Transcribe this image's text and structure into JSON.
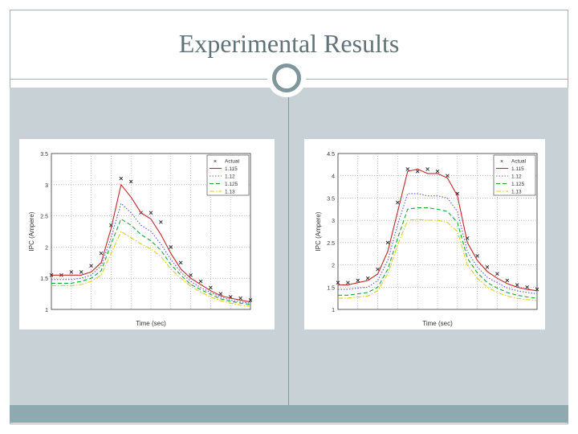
{
  "slide": {
    "title": "Experimental Results"
  },
  "colors": {
    "actual": "#222222",
    "s1": "#c0282d",
    "s2": "#5a5ad0",
    "s3": "#1fa33a",
    "s4": "#e0cc24"
  },
  "chart_data": [
    {
      "type": "line",
      "title": "",
      "xlabel": "Time (sec)",
      "ylabel": "IPC (Ampere)",
      "ylim": [
        1,
        3.5
      ],
      "xlim": [
        0,
        100
      ],
      "yticks": [
        "1",
        "1.5",
        "2",
        "2.5",
        "3",
        "3.5"
      ],
      "legend_position": "top-right",
      "x": [
        0,
        5,
        10,
        15,
        20,
        25,
        30,
        35,
        40,
        45,
        50,
        55,
        60,
        65,
        70,
        75,
        80,
        85,
        90,
        95,
        100
      ],
      "series": [
        {
          "name": "Actual",
          "style": "marker",
          "values": [
            1.55,
            1.55,
            1.6,
            1.6,
            1.7,
            1.9,
            2.35,
            3.1,
            3.05,
            2.55,
            2.55,
            2.4,
            2.0,
            1.75,
            1.55,
            1.45,
            1.35,
            1.25,
            1.2,
            1.18,
            1.15
          ]
        },
        {
          "name": "1.115",
          "style": "solid",
          "values": [
            1.55,
            1.55,
            1.55,
            1.55,
            1.6,
            1.75,
            2.3,
            3.0,
            2.8,
            2.55,
            2.45,
            2.2,
            1.9,
            1.65,
            1.5,
            1.4,
            1.3,
            1.22,
            1.18,
            1.15,
            1.12
          ]
        },
        {
          "name": "1.12",
          "style": "dotted",
          "values": [
            1.48,
            1.48,
            1.48,
            1.5,
            1.55,
            1.7,
            2.15,
            2.7,
            2.55,
            2.35,
            2.25,
            2.05,
            1.8,
            1.6,
            1.45,
            1.35,
            1.27,
            1.2,
            1.15,
            1.12,
            1.1
          ]
        },
        {
          "name": "1.125",
          "style": "dashed",
          "values": [
            1.42,
            1.42,
            1.42,
            1.45,
            1.5,
            1.62,
            2.05,
            2.45,
            2.35,
            2.2,
            2.1,
            1.95,
            1.72,
            1.55,
            1.4,
            1.32,
            1.24,
            1.17,
            1.13,
            1.1,
            1.08
          ]
        },
        {
          "name": "1.13",
          "style": "dashdot",
          "values": [
            1.38,
            1.38,
            1.38,
            1.4,
            1.45,
            1.55,
            1.9,
            2.25,
            2.15,
            2.05,
            1.97,
            1.85,
            1.65,
            1.5,
            1.37,
            1.28,
            1.2,
            1.14,
            1.1,
            1.07,
            1.05
          ]
        }
      ]
    },
    {
      "type": "line",
      "title": "",
      "xlabel": "Time (sec)",
      "ylabel": "IPC (Ampere)",
      "ylim": [
        1,
        4.5
      ],
      "xlim": [
        0,
        100
      ],
      "yticks": [
        "1",
        "1.5",
        "2",
        "2.5",
        "3",
        "3.5",
        "4",
        "4.5"
      ],
      "legend_position": "top-right",
      "x": [
        0,
        5,
        10,
        15,
        20,
        25,
        30,
        35,
        40,
        45,
        50,
        55,
        60,
        65,
        70,
        75,
        80,
        85,
        90,
        95,
        100
      ],
      "series": [
        {
          "name": "Actual",
          "style": "marker",
          "values": [
            1.6,
            1.6,
            1.65,
            1.7,
            1.9,
            2.5,
            3.4,
            4.15,
            4.1,
            4.15,
            4.1,
            4.0,
            3.6,
            2.6,
            2.2,
            1.95,
            1.8,
            1.65,
            1.55,
            1.5,
            1.45
          ]
        },
        {
          "name": "1.115",
          "style": "solid",
          "values": [
            1.55,
            1.55,
            1.6,
            1.65,
            1.8,
            2.3,
            3.2,
            4.1,
            4.15,
            4.05,
            4.05,
            3.95,
            3.55,
            2.5,
            2.1,
            1.85,
            1.7,
            1.58,
            1.5,
            1.45,
            1.42
          ]
        },
        {
          "name": "1.12",
          "style": "dotted",
          "values": [
            1.45,
            1.45,
            1.48,
            1.5,
            1.65,
            2.1,
            2.9,
            3.6,
            3.6,
            3.55,
            3.55,
            3.5,
            3.2,
            2.3,
            1.95,
            1.72,
            1.6,
            1.48,
            1.42,
            1.38,
            1.35
          ]
        },
        {
          "name": "1.125",
          "style": "dashed",
          "values": [
            1.32,
            1.32,
            1.35,
            1.38,
            1.5,
            1.9,
            2.6,
            3.25,
            3.28,
            3.28,
            3.25,
            3.2,
            2.95,
            2.15,
            1.82,
            1.6,
            1.48,
            1.38,
            1.32,
            1.28,
            1.25
          ]
        },
        {
          "name": "1.13",
          "style": "dashdot",
          "values": [
            1.25,
            1.25,
            1.28,
            1.3,
            1.42,
            1.8,
            2.45,
            3.0,
            3.02,
            3.0,
            3.0,
            2.95,
            2.75,
            2.0,
            1.7,
            1.5,
            1.38,
            1.3,
            1.25,
            1.22,
            1.2
          ]
        }
      ]
    }
  ]
}
